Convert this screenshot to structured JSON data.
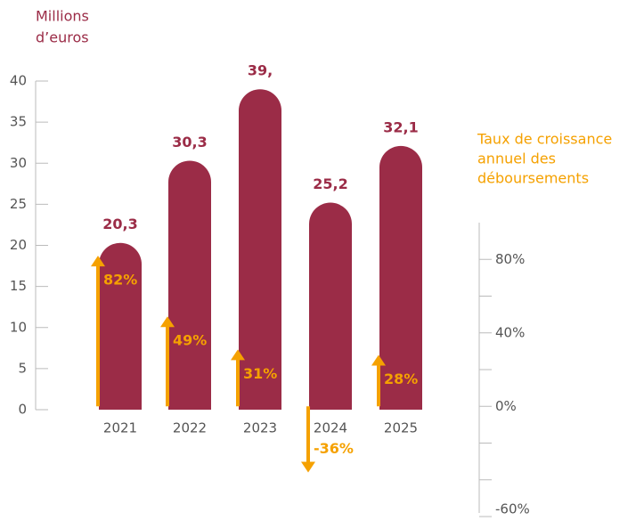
{
  "chart_data": {
    "type": "bar",
    "y_axis_title": [
      "Millions",
      "d’euros"
    ],
    "y2_axis_title": [
      "Taux de croissance",
      "annuel des",
      "déboursements"
    ],
    "categories": [
      "2021",
      "2022",
      "2023",
      "2024",
      "2025"
    ],
    "series": [
      {
        "name": "Millions d’euros",
        "color": "#9b2c47",
        "values": [
          20.3,
          30.3,
          39,
          25.2,
          32.1
        ],
        "value_labels": [
          "20,3",
          "30,3",
          "39,",
          "25,2",
          "32,1"
        ]
      },
      {
        "name": "Taux de croissance annuel des déboursements",
        "color": "#f5a100",
        "axis": "y2",
        "values": [
          82,
          49,
          31,
          -36,
          28
        ],
        "value_labels": [
          "82%",
          "49%",
          "31%",
          "-36%",
          "28%"
        ]
      }
    ],
    "ylim": [
      0,
      40
    ],
    "yticks": [
      0,
      5,
      10,
      15,
      20,
      25,
      30,
      35,
      40
    ],
    "y2lim": [
      -60,
      100
    ],
    "y2ticks": [
      {
        "value": 80,
        "label": "80%"
      },
      {
        "value": 40,
        "label": "40%"
      },
      {
        "value": 0,
        "label": "0%"
      },
      {
        "value": -60,
        "label": "-60%"
      }
    ],
    "y2minor_ticks": [
      60,
      20,
      -20,
      -40
    ]
  }
}
